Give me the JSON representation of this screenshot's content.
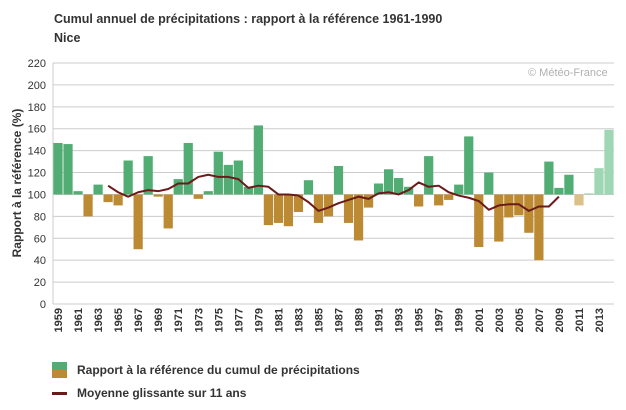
{
  "chart_data": {
    "type": "bar",
    "title": "Cumul annuel de précipitations : rapport à la référence 1961-1990",
    "subtitle": "Nice",
    "ylabel": "Rapport à la référence (%)",
    "xlabel": "",
    "ylim": [
      0,
      220
    ],
    "yticks": [
      0,
      20,
      40,
      60,
      80,
      100,
      120,
      140,
      160,
      180,
      200,
      220
    ],
    "reference": 100,
    "grid": true,
    "copyright": "© Météo-France",
    "x": [
      1959,
      1960,
      1961,
      1962,
      1963,
      1964,
      1965,
      1966,
      1967,
      1968,
      1969,
      1970,
      1971,
      1972,
      1973,
      1974,
      1975,
      1976,
      1977,
      1978,
      1979,
      1980,
      1981,
      1982,
      1983,
      1984,
      1985,
      1986,
      1987,
      1988,
      1989,
      1990,
      1991,
      1992,
      1993,
      1994,
      1995,
      1996,
      1997,
      1998,
      1999,
      2000,
      2001,
      2002,
      2003,
      2004,
      2005,
      2006,
      2007,
      2008,
      2009,
      2010,
      2011,
      2012,
      2013,
      2014
    ],
    "xtick_labels": [
      "1959",
      "1961",
      "1963",
      "1965",
      "1967",
      "1969",
      "1971",
      "1973",
      "1975",
      "1977",
      "1979",
      "1981",
      "1983",
      "1985",
      "1987",
      "1989",
      "1991",
      "1993",
      "1995",
      "1997",
      "1999",
      "2001",
      "2003",
      "2005",
      "2007",
      "2009",
      "2011",
      "2013"
    ],
    "values": [
      147,
      146,
      103,
      80,
      109,
      93,
      90,
      131,
      50,
      135,
      98,
      69,
      114,
      147,
      96,
      103,
      139,
      127,
      131,
      107,
      163,
      72,
      74,
      71,
      84,
      113,
      74,
      80,
      126,
      74,
      58,
      88,
      110,
      123,
      115,
      107,
      89,
      135,
      90,
      95,
      109,
      153,
      52,
      120,
      57,
      79,
      81,
      65,
      40,
      130,
      106,
      118,
      90,
      101,
      124,
      159
    ],
    "provisional_years": [
      2011,
      2012,
      2013,
      2014
    ],
    "moving_average": {
      "name": "Moyenne glissante sur 11 ans",
      "x": [
        1964,
        1965,
        1966,
        1967,
        1968,
        1969,
        1970,
        1971,
        1972,
        1973,
        1974,
        1975,
        1976,
        1977,
        1978,
        1979,
        1980,
        1981,
        1982,
        1983,
        1984,
        1985,
        1986,
        1987,
        1988,
        1989,
        1990,
        1991,
        1992,
        1993,
        1994,
        1995,
        1996,
        1997,
        1998,
        1999,
        2000,
        2001,
        2002,
        2003,
        2004,
        2005,
        2006,
        2007,
        2008,
        2009
      ],
      "values": [
        108,
        102,
        98,
        102,
        104,
        103,
        105,
        110,
        110,
        116,
        118,
        116,
        116,
        114,
        106,
        108,
        107,
        100,
        100,
        99,
        93,
        85,
        88,
        92,
        95,
        98,
        96,
        101,
        102,
        100,
        104,
        111,
        107,
        108,
        102,
        99,
        97,
        94,
        86,
        90,
        91,
        91,
        85,
        89,
        89,
        98
      ]
    },
    "colors": {
      "above": "#52ad74",
      "below": "#bb8a33",
      "above_provisional": "#9fd6b3",
      "below_provisional": "#dcc08a",
      "moving_average": "#6b1a1a",
      "grid": "#cccccc"
    },
    "legend": {
      "position": "bottom-left",
      "bars_label": "Rapport à la référence du cumul de précipitations",
      "line_label": "Moyenne glissante sur 11 ans"
    }
  }
}
